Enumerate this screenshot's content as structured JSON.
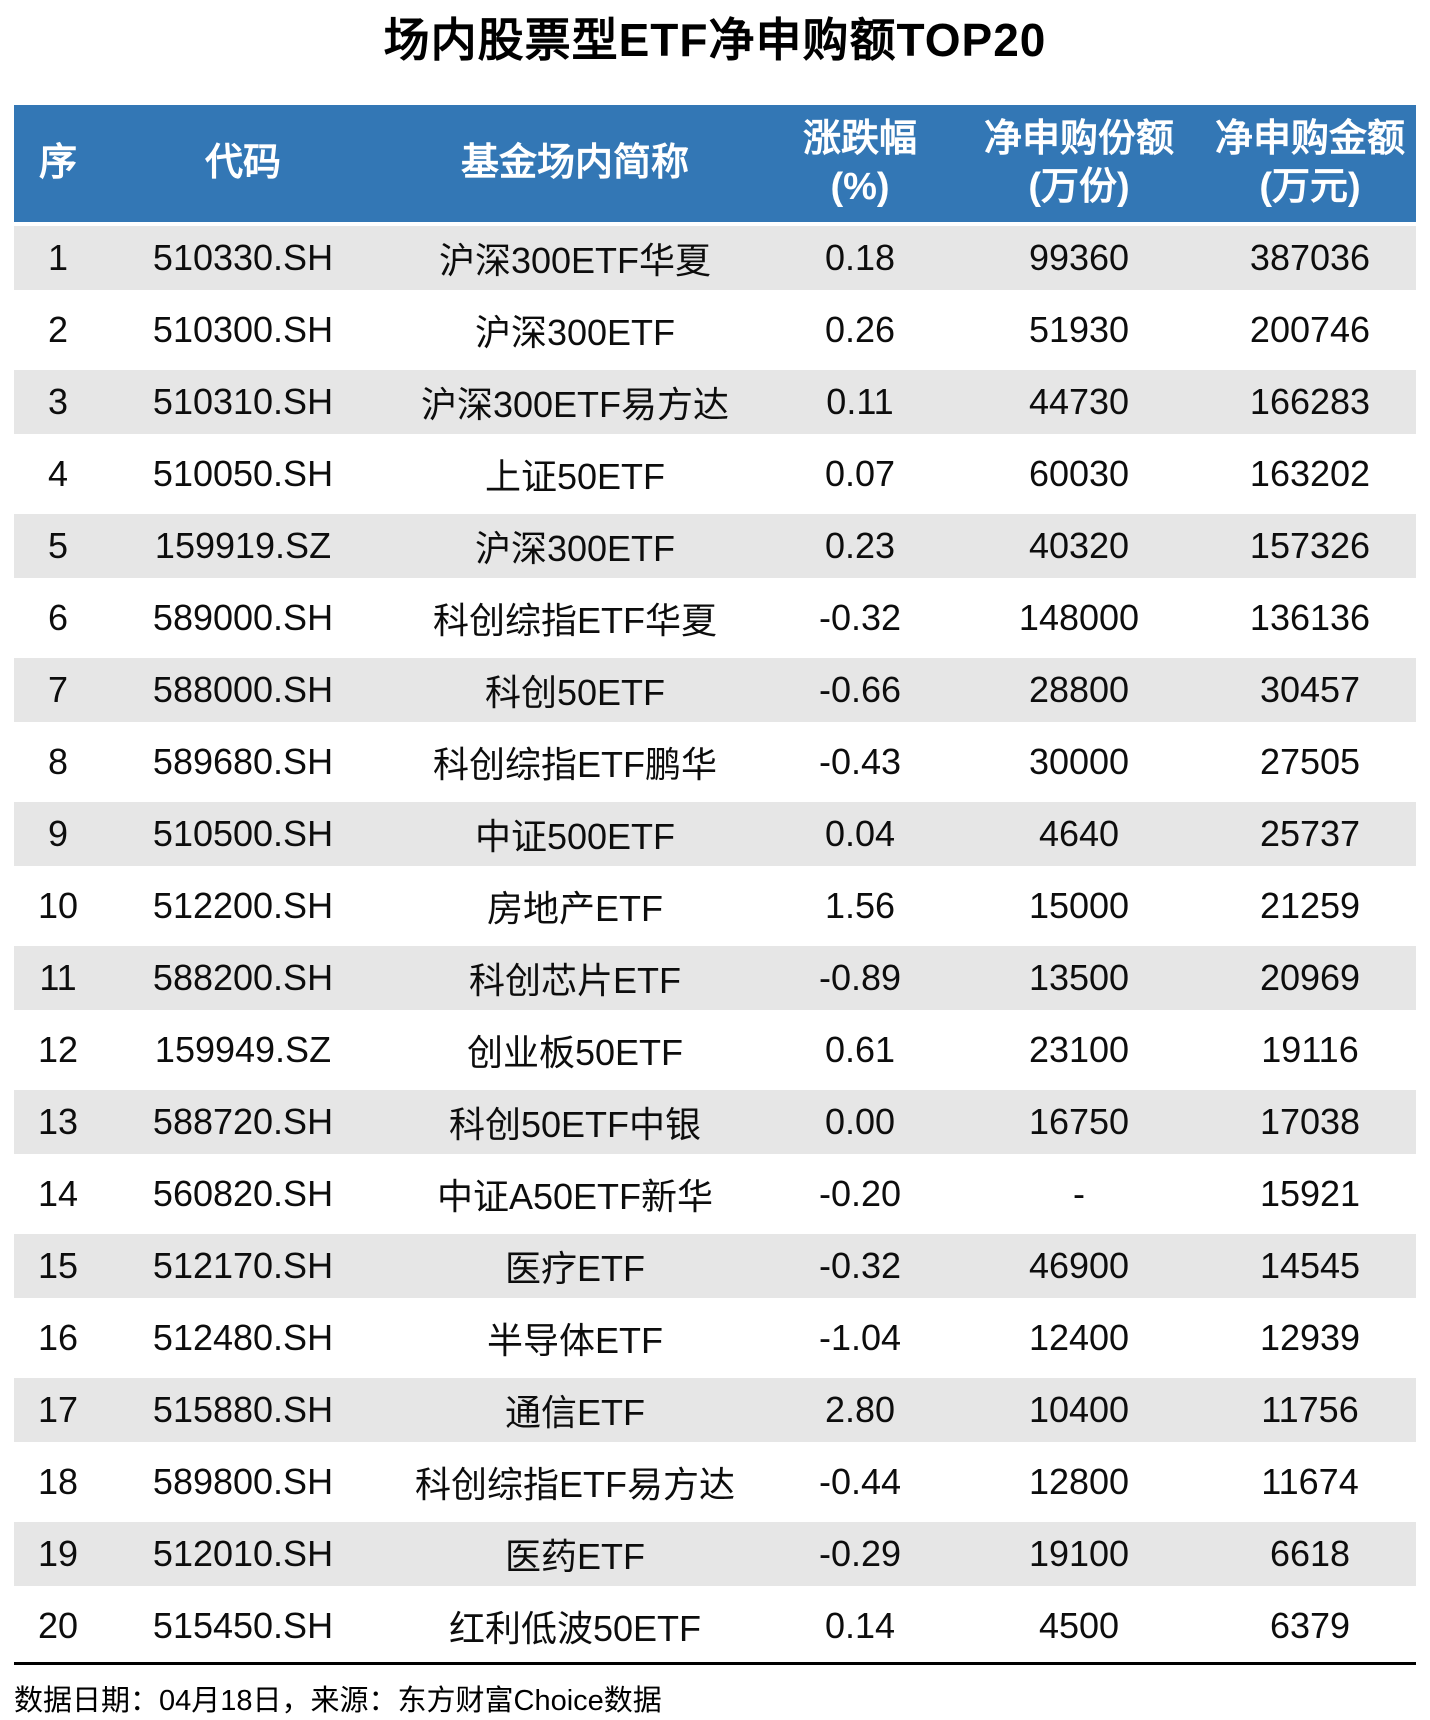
{
  "chart_data": {
    "type": "table",
    "title": "场内股票型ETF净申购额TOP20",
    "columns": [
      {
        "label": "序",
        "unit": ""
      },
      {
        "label": "代码",
        "unit": ""
      },
      {
        "label": "基金场内简称",
        "unit": ""
      },
      {
        "label": "涨跌幅",
        "unit": "(%)"
      },
      {
        "label": "净申购份额",
        "unit": "(万份)"
      },
      {
        "label": "净申购金额",
        "unit": "(万元)"
      }
    ],
    "rows": [
      [
        "1",
        "510330.SH",
        "沪深300ETF华夏",
        "0.18",
        "99360",
        "387036"
      ],
      [
        "2",
        "510300.SH",
        "沪深300ETF",
        "0.26",
        "51930",
        "200746"
      ],
      [
        "3",
        "510310.SH",
        "沪深300ETF易方达",
        "0.11",
        "44730",
        "166283"
      ],
      [
        "4",
        "510050.SH",
        "上证50ETF",
        "0.07",
        "60030",
        "163202"
      ],
      [
        "5",
        "159919.SZ",
        "沪深300ETF",
        "0.23",
        "40320",
        "157326"
      ],
      [
        "6",
        "589000.SH",
        "科创综指ETF华夏",
        "-0.32",
        "148000",
        "136136"
      ],
      [
        "7",
        "588000.SH",
        "科创50ETF",
        "-0.66",
        "28800",
        "30457"
      ],
      [
        "8",
        "589680.SH",
        "科创综指ETF鹏华",
        "-0.43",
        "30000",
        "27505"
      ],
      [
        "9",
        "510500.SH",
        "中证500ETF",
        "0.04",
        "4640",
        "25737"
      ],
      [
        "10",
        "512200.SH",
        "房地产ETF",
        "1.56",
        "15000",
        "21259"
      ],
      [
        "11",
        "588200.SH",
        "科创芯片ETF",
        "-0.89",
        "13500",
        "20969"
      ],
      [
        "12",
        "159949.SZ",
        "创业板50ETF",
        "0.61",
        "23100",
        "19116"
      ],
      [
        "13",
        "588720.SH",
        "科创50ETF中银",
        "0.00",
        "16750",
        "17038"
      ],
      [
        "14",
        "560820.SH",
        "中证A50ETF新华",
        "-0.20",
        "-",
        "15921"
      ],
      [
        "15",
        "512170.SH",
        "医疗ETF",
        "-0.32",
        "46900",
        "14545"
      ],
      [
        "16",
        "512480.SH",
        "半导体ETF",
        "-1.04",
        "12400",
        "12939"
      ],
      [
        "17",
        "515880.SH",
        "通信ETF",
        "2.80",
        "10400",
        "11756"
      ],
      [
        "18",
        "589800.SH",
        "科创综指ETF易方达",
        "-0.44",
        "12800",
        "11674"
      ],
      [
        "19",
        "512010.SH",
        "医药ETF",
        "-0.29",
        "19100",
        "6618"
      ],
      [
        "20",
        "515450.SH",
        "红利低波50ETF",
        "0.14",
        "4500",
        "6379"
      ]
    ]
  },
  "colors": {
    "header_bg": "#3377B5",
    "header_text": "#FFFFFF",
    "stripe": "#E6E6E6",
    "body_text": "#0D0D0D"
  },
  "footer": {
    "note": "数据日期：04月18日，来源：东方财富Choice数据"
  }
}
